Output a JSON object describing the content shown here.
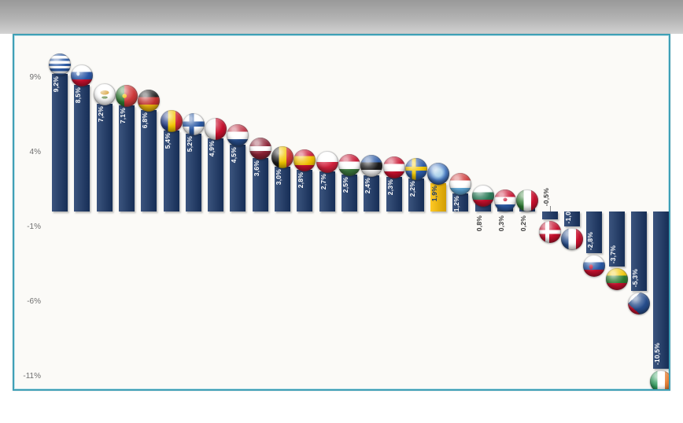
{
  "window": {
    "description": "embedded-chart-screenshot",
    "top_band": true
  },
  "colors": {
    "bar": "#1b3869",
    "highlight_bar": "#ffc000",
    "panel_border": "#3fa0b6",
    "panel_background": "#fbfaf7",
    "inside_label_text": "#ffffff",
    "highlight_label_text": "#17366b",
    "outside_label_text": "#3b3b3b",
    "axis_text": "#6f6f6f",
    "top_band_grey": "#b3b3b3"
  },
  "chart_data": {
    "type": "bar",
    "title": "",
    "xlabel": "",
    "ylabel": "",
    "unit": "%",
    "grid": false,
    "legend": "none",
    "ylim": [
      -11.8,
      10.6
    ],
    "y_ticks": [
      {
        "label": "9%",
        "value": 9
      },
      {
        "label": "4%",
        "value": 4
      },
      {
        "label": "-1%",
        "value": -1
      },
      {
        "label": "-6%",
        "value": -6
      },
      {
        "label": "-11%",
        "value": -11
      }
    ],
    "categories": [
      "Greece",
      "Slovenia",
      "Cyprus",
      "Portugal",
      "Germany",
      "Romania",
      "Finland",
      "Malta",
      "Netherlands",
      "Latvia",
      "Belgium",
      "Spain",
      "Poland",
      "Hungary",
      "Estonia",
      "Austria",
      "Sweden",
      "EU",
      "Luxembourg",
      "Bulgaria",
      "Croatia",
      "Italy",
      "Denmark",
      "France",
      "Slovakia",
      "Lithuania",
      "Czechia",
      "Ireland"
    ],
    "series": [
      {
        "country": "Greece",
        "flag": "greece",
        "value": 9.2,
        "label": "9,2%",
        "label_placement": "inside",
        "highlight": false
      },
      {
        "country": "Slovenia",
        "flag": "slovenia",
        "value": 8.5,
        "label": "8,5%",
        "label_placement": "inside",
        "highlight": false
      },
      {
        "country": "Cyprus",
        "flag": "cyprus",
        "value": 7.2,
        "label": "7,2%",
        "label_placement": "inside",
        "highlight": false
      },
      {
        "country": "Portugal",
        "flag": "portugal",
        "value": 7.1,
        "label": "7,1%",
        "label_placement": "inside",
        "highlight": false
      },
      {
        "country": "Germany",
        "flag": "germany",
        "value": 6.8,
        "label": "6,8%",
        "label_placement": "inside",
        "highlight": false
      },
      {
        "country": "Romania",
        "flag": "romania",
        "value": 5.4,
        "label": "5,4%",
        "label_placement": "inside",
        "highlight": false
      },
      {
        "country": "Finland",
        "flag": "finland",
        "value": 5.2,
        "label": "5,2%",
        "label_placement": "inside",
        "highlight": false
      },
      {
        "country": "Malta",
        "flag": "malta",
        "value": 4.9,
        "label": "4,9%",
        "label_placement": "inside",
        "highlight": false
      },
      {
        "country": "Netherlands",
        "flag": "netherlands",
        "value": 4.5,
        "label": "4,5%",
        "label_placement": "inside",
        "highlight": false
      },
      {
        "country": "Latvia",
        "flag": "latvia",
        "value": 3.6,
        "label": "3,6%",
        "label_placement": "inside",
        "highlight": false
      },
      {
        "country": "Belgium",
        "flag": "belgium",
        "value": 3.0,
        "label": "3,0%",
        "label_placement": "inside",
        "highlight": false
      },
      {
        "country": "Spain",
        "flag": "spain",
        "value": 2.8,
        "label": "2,8%",
        "label_placement": "inside",
        "highlight": false
      },
      {
        "country": "Poland",
        "flag": "poland",
        "value": 2.7,
        "label": "2,7%",
        "label_placement": "inside",
        "highlight": false
      },
      {
        "country": "Hungary",
        "flag": "hungary",
        "value": 2.5,
        "label": "2,5%",
        "label_placement": "inside",
        "highlight": false
      },
      {
        "country": "Estonia",
        "flag": "estonia",
        "value": 2.4,
        "label": "2,4%",
        "label_placement": "inside",
        "highlight": false
      },
      {
        "country": "Austria",
        "flag": "austria",
        "value": 2.3,
        "label": "2,3%",
        "label_placement": "inside",
        "highlight": false
      },
      {
        "country": "Sweden",
        "flag": "sweden",
        "value": 2.2,
        "label": "2,2%",
        "label_placement": "inside",
        "highlight": false
      },
      {
        "country": "EU",
        "flag": "eu",
        "value": 1.9,
        "label": "1,9%",
        "label_placement": "inside",
        "highlight": true
      },
      {
        "country": "Luxembourg",
        "flag": "luxembourg",
        "value": 1.2,
        "label": "1,2%",
        "label_placement": "inside",
        "highlight": false
      },
      {
        "country": "Bulgaria",
        "flag": "bulgaria",
        "value": 0.8,
        "label": "0,8%",
        "label_placement": "outside",
        "highlight": false
      },
      {
        "country": "Croatia",
        "flag": "croatia",
        "value": 0.3,
        "label": "0,3%",
        "label_placement": "outside",
        "highlight": false
      },
      {
        "country": "Italy",
        "flag": "italy",
        "value": 0.2,
        "label": "0,2%",
        "label_placement": "outside",
        "highlight": false
      },
      {
        "country": "Denmark",
        "flag": "denmark",
        "value": -0.5,
        "label": "-0,5%",
        "label_placement": "outside",
        "connector": true,
        "highlight": false
      },
      {
        "country": "France",
        "flag": "france",
        "value": -1.0,
        "label": "-1,0",
        "label_placement": "inside",
        "highlight": false
      },
      {
        "country": "Slovakia",
        "flag": "slovakia",
        "value": -2.8,
        "label": "-2,8%",
        "label_placement": "inside",
        "highlight": false
      },
      {
        "country": "Lithuania",
        "flag": "lithuania",
        "value": -3.7,
        "label": "-3,7%",
        "label_placement": "inside",
        "highlight": false
      },
      {
        "country": "Czechia",
        "flag": "czechia",
        "value": -5.3,
        "label": "-5,3%",
        "label_placement": "inside",
        "highlight": false
      },
      {
        "country": "Ireland",
        "flag": "ireland",
        "value": -10.5,
        "label": "-10,5%",
        "label_placement": "inside",
        "highlight": false
      }
    ]
  }
}
